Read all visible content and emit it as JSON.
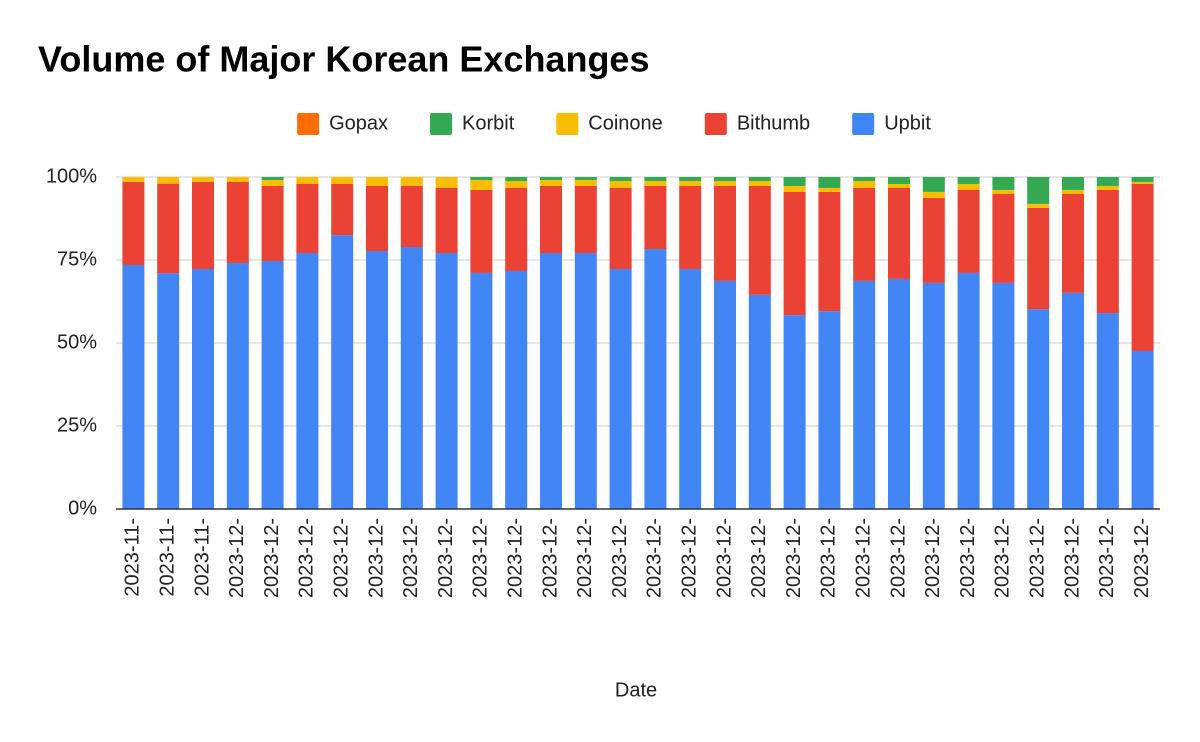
{
  "chart_data": {
    "type": "bar",
    "stacked": true,
    "title": "Volume of Major Korean Exchanges",
    "x_label": "Date",
    "categories": [
      "2023-11-",
      "2023-11-",
      "2023-11-",
      "2023-12-",
      "2023-12-",
      "2023-12-",
      "2023-12-",
      "2023-12-",
      "2023-12-",
      "2023-12-",
      "2023-12-",
      "2023-12-",
      "2023-12-",
      "2023-12-",
      "2023-12-",
      "2023-12-",
      "2023-12-",
      "2023-12-",
      "2023-12-",
      "2023-12-",
      "2023-12-",
      "2023-12-",
      "2023-12-",
      "2023-12-",
      "2023-12-",
      "2023-12-",
      "2023-12-",
      "2023-12-",
      "2023-12-",
      "2023-12-"
    ],
    "series": [
      {
        "name": "Upbit",
        "color": "#4285f4",
        "values": [
          73.5,
          71,
          72.3,
          74.1,
          74.7,
          77.1,
          82.5,
          77.7,
          78.9,
          77.1,
          71.1,
          71.7,
          77.1,
          77.1,
          72.3,
          78.3,
          72.3,
          68.7,
          64.5,
          58.4,
          59.6,
          68.7,
          69.3,
          68.1,
          71.1,
          68.1,
          60.2,
          65.1,
          59,
          47.6
        ]
      },
      {
        "name": "Bithumb",
        "color": "#ea4335",
        "values": [
          25,
          27,
          26.2,
          24.4,
          22.6,
          20.8,
          15.4,
          19.6,
          18.4,
          19.6,
          25,
          25,
          20.2,
          20.2,
          24.4,
          19,
          25,
          28.6,
          32.8,
          37.1,
          35.9,
          28,
          27.4,
          25.6,
          25,
          26.8,
          30.5,
          29.8,
          37.1,
          50.3
        ]
      },
      {
        "name": "Coinone",
        "color": "#fbbc04",
        "values": [
          1.5,
          2,
          1.5,
          1.5,
          1.8,
          2.1,
          2.1,
          2.7,
          2.7,
          3.3,
          3,
          2.1,
          1.8,
          1.8,
          2.1,
          1.5,
          1.5,
          1.5,
          1.5,
          1.8,
          1.2,
          2.1,
          1.2,
          1.8,
          1.8,
          1.2,
          1.2,
          1.2,
          1.2,
          0.6
        ]
      },
      {
        "name": "Korbit",
        "color": "#34a853",
        "values": [
          0,
          0,
          0,
          0,
          0.9,
          0,
          0,
          0,
          0,
          0,
          0.9,
          1.2,
          0.9,
          0.9,
          1.2,
          1.2,
          1.2,
          1.2,
          1.2,
          2.7,
          3.3,
          1.2,
          2.1,
          4.5,
          2.1,
          3.9,
          8.1,
          3.9,
          2.7,
          1.5
        ]
      },
      {
        "name": "Gopax",
        "color": "#ff6d01",
        "values": [
          0,
          0,
          0,
          0,
          0,
          0,
          0,
          0,
          0,
          0,
          0,
          0,
          0,
          0,
          0,
          0,
          0,
          0,
          0,
          0,
          0,
          0,
          0,
          0,
          0,
          0,
          0,
          0,
          0,
          0
        ]
      }
    ],
    "ylim": [
      0,
      100
    ],
    "yticks": [
      {
        "value": 0,
        "label": "0%"
      },
      {
        "value": 25,
        "label": "25%"
      },
      {
        "value": 50,
        "label": "50%"
      },
      {
        "value": 75,
        "label": "75%"
      },
      {
        "value": 100,
        "label": "100%"
      }
    ],
    "grid": true,
    "legend": "top"
  }
}
